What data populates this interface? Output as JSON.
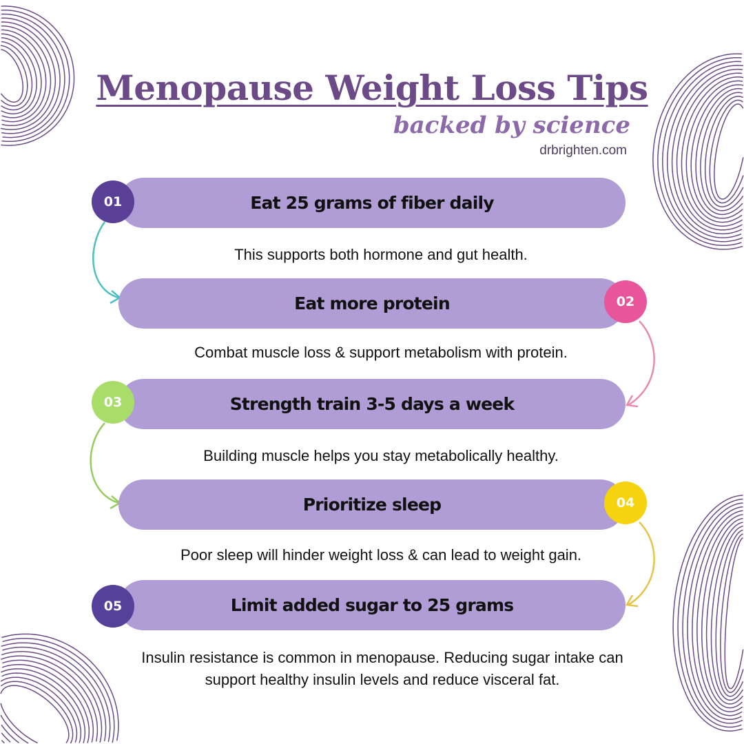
{
  "header": {
    "title": "Menopause Weight Loss Tips",
    "subtitle": "backed by science",
    "website": "drbrighten.com"
  },
  "colors": {
    "title": "#6b4a87",
    "pill": "#b09dd5",
    "decoration": "#6b4a87"
  },
  "tips": [
    {
      "number": "01",
      "heading": "Eat 25 grams of fiber daily",
      "description": "This supports both hormone and gut health.",
      "color": "#5a3f96",
      "arrow_color": "#4fbfbf"
    },
    {
      "number": "02",
      "heading": "Eat more protein",
      "description": "Combat muscle loss & support metabolism with protein.",
      "color": "#e8559b",
      "arrow_color": "#e88ab0"
    },
    {
      "number": "03",
      "heading": "Strength train 3-5 days a week",
      "description": "Building muscle helps you stay metabolically healthy.",
      "color": "#a9dd6a",
      "arrow_color": "#96cc5f"
    },
    {
      "number": "04",
      "heading": "Prioritize sleep",
      "description": "Poor sleep will hinder weight loss & can lead to weight gain.",
      "color": "#f5d40f",
      "arrow_color": "#e8c34a"
    },
    {
      "number": "05",
      "heading": "Limit added sugar to 25 grams",
      "description": "Insulin resistance is common in menopause. Reducing sugar intake can support healthy insulin levels and reduce visceral fat.",
      "color": "#55409a"
    }
  ]
}
